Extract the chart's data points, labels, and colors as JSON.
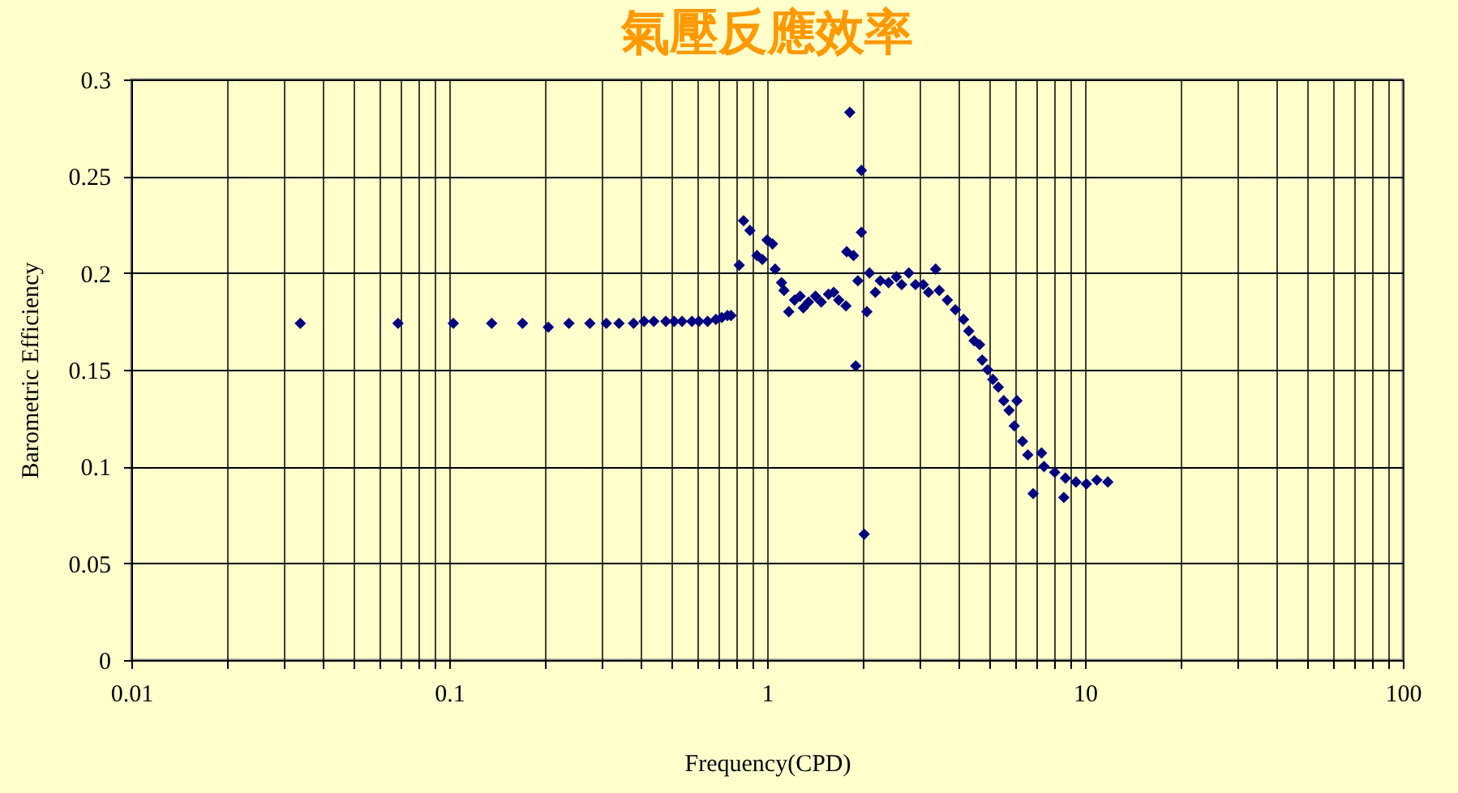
{
  "chart_data": {
    "type": "scatter",
    "title": "氣壓反應效率",
    "xlabel": "Frequency(CPD)",
    "ylabel": "Barometric Efficiency",
    "log": "x",
    "grid": true,
    "marker": "diamond",
    "xlim": [
      0.01,
      100
    ],
    "ylim": [
      0,
      0.3
    ],
    "xticks": [
      0.01,
      {
        "value": 0.02,
        "label": null
      },
      {
        "value": 0.03,
        "label": null
      },
      {
        "value": 0.04,
        "label": null
      },
      {
        "value": 0.05,
        "label": null
      },
      {
        "value": 0.06,
        "label": null
      },
      {
        "value": 0.07,
        "label": null
      },
      {
        "value": 0.08,
        "label": null
      },
      {
        "value": 0.09,
        "label": null
      },
      0.1,
      {
        "value": 0.2,
        "label": null
      },
      {
        "value": 0.3,
        "label": null
      },
      {
        "value": 0.4,
        "label": null
      },
      {
        "value": 0.5,
        "label": null
      },
      {
        "value": 0.6,
        "label": null
      },
      {
        "value": 0.7,
        "label": null
      },
      {
        "value": 0.8,
        "label": null
      },
      {
        "value": 0.9,
        "label": null
      },
      1,
      {
        "value": 2,
        "label": null
      },
      {
        "value": 3,
        "label": null
      },
      {
        "value": 4,
        "label": null
      },
      {
        "value": 5,
        "label": null
      },
      {
        "value": 6,
        "label": null
      },
      {
        "value": 7,
        "label": null
      },
      {
        "value": 8,
        "label": null
      },
      {
        "value": 9,
        "label": null
      },
      10,
      {
        "value": 20,
        "label": null
      },
      {
        "value": 30,
        "label": null
      },
      {
        "value": 40,
        "label": null
      },
      {
        "value": 50,
        "label": null
      },
      {
        "value": 60,
        "label": null
      },
      {
        "value": 70,
        "label": null
      },
      {
        "value": 80,
        "label": null
      },
      {
        "value": 90,
        "label": null
      },
      100
    ],
    "yticks": [
      0,
      0.05,
      0.1,
      0.15,
      0.2,
      0.25,
      0.3
    ],
    "series": [
      {
        "color": "#000080",
        "x": [
          0.034,
          0.069,
          0.103,
          0.136,
          0.17,
          0.205,
          0.238,
          0.277,
          0.312,
          0.342,
          0.38,
          0.41,
          0.44,
          0.48,
          0.51,
          0.54,
          0.58,
          0.61,
          0.65,
          0.69,
          0.72,
          0.75,
          0.77,
          0.817,
          0.843,
          0.883,
          0.929,
          0.966,
          1.0,
          1.04,
          1.06,
          1.11,
          1.13,
          1.17,
          1.22,
          1.27,
          1.3,
          1.35,
          1.42,
          1.48,
          1.56,
          1.62,
          1.68,
          1.77,
          1.78,
          1.87,
          1.82,
          1.9,
          1.93,
          1.98,
          1.98,
          2.02,
          2.06,
          2.1,
          2.19,
          2.27,
          2.41,
          2.55,
          2.65,
          2.79,
          2.93,
          3.1,
          3.22,
          3.39,
          3.48,
          3.69,
          3.91,
          4.15,
          4.31,
          4.48,
          4.66,
          4.75,
          4.94,
          5.13,
          5.34,
          5.55,
          5.77,
          6.11,
          5.99,
          6.36,
          6.61,
          7.3,
          6.87,
          7.43,
          8.03,
          8.58,
          8.68,
          9.37,
          10.1,
          10.9,
          11.8
        ],
        "values": [
          0.174,
          0.174,
          0.174,
          0.174,
          0.174,
          0.172,
          0.174,
          0.174,
          0.174,
          0.174,
          0.174,
          0.175,
          0.175,
          0.175,
          0.175,
          0.175,
          0.175,
          0.175,
          0.175,
          0.176,
          0.177,
          0.178,
          0.178,
          0.204,
          0.227,
          0.222,
          0.209,
          0.207,
          0.217,
          0.215,
          0.202,
          0.195,
          0.191,
          0.18,
          0.186,
          0.188,
          0.182,
          0.185,
          0.188,
          0.185,
          0.189,
          0.19,
          0.186,
          0.183,
          0.211,
          0.209,
          0.283,
          0.152,
          0.196,
          0.253,
          0.221,
          0.065,
          0.18,
          0.2,
          0.19,
          0.196,
          0.195,
          0.198,
          0.194,
          0.2,
          0.194,
          0.194,
          0.19,
          0.202,
          0.191,
          0.186,
          0.181,
          0.176,
          0.17,
          0.165,
          0.163,
          0.155,
          0.15,
          0.145,
          0.141,
          0.134,
          0.129,
          0.134,
          0.121,
          0.113,
          0.106,
          0.107,
          0.086,
          0.1,
          0.097,
          0.084,
          0.094,
          0.092,
          0.091,
          0.093,
          0.092
        ]
      }
    ]
  }
}
